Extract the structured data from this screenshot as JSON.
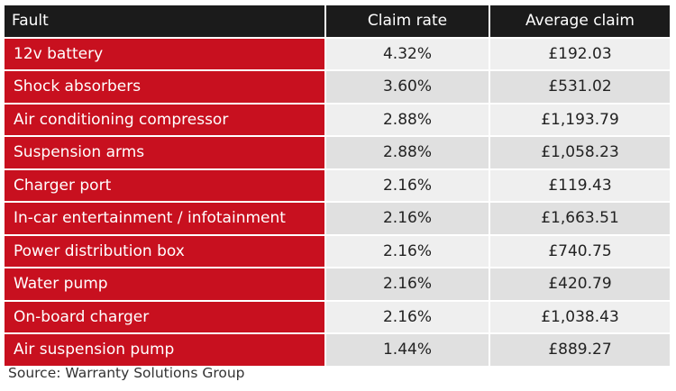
{
  "chart_data": {
    "type": "table",
    "columns": [
      "Fault",
      "Claim rate",
      "Average claim"
    ],
    "rows": [
      {
        "fault": "12v battery",
        "claim_rate": "4.32%",
        "average_claim": "£192.03"
      },
      {
        "fault": "Shock absorbers",
        "claim_rate": "3.60%",
        "average_claim": "£531.02"
      },
      {
        "fault": "Air conditioning compressor",
        "claim_rate": "2.88%",
        "average_claim": "£1,193.79"
      },
      {
        "fault": "Suspension arms",
        "claim_rate": "2.88%",
        "average_claim": "£1,058.23"
      },
      {
        "fault": "Charger port",
        "claim_rate": "2.16%",
        "average_claim": "£119.43"
      },
      {
        "fault": "In-car entertainment / infotainment",
        "claim_rate": "2.16%",
        "average_claim": "£1,663.51"
      },
      {
        "fault": "Power distribution box",
        "claim_rate": "2.16%",
        "average_claim": "£740.75"
      },
      {
        "fault": "Water pump",
        "claim_rate": "2.16%",
        "average_claim": "£420.79"
      },
      {
        "fault": "On-board charger",
        "claim_rate": "2.16%",
        "average_claim": "£1,038.43"
      },
      {
        "fault": "Air suspension pump",
        "claim_rate": "1.44%",
        "average_claim": "£889.27"
      }
    ],
    "source": "Source: Warranty Solutions Group"
  },
  "colors": {
    "header_bg": "#1b1b1b",
    "fault_bg": "#c8101f",
    "row_light": "#efefef",
    "row_dark": "#e0e0e0"
  }
}
